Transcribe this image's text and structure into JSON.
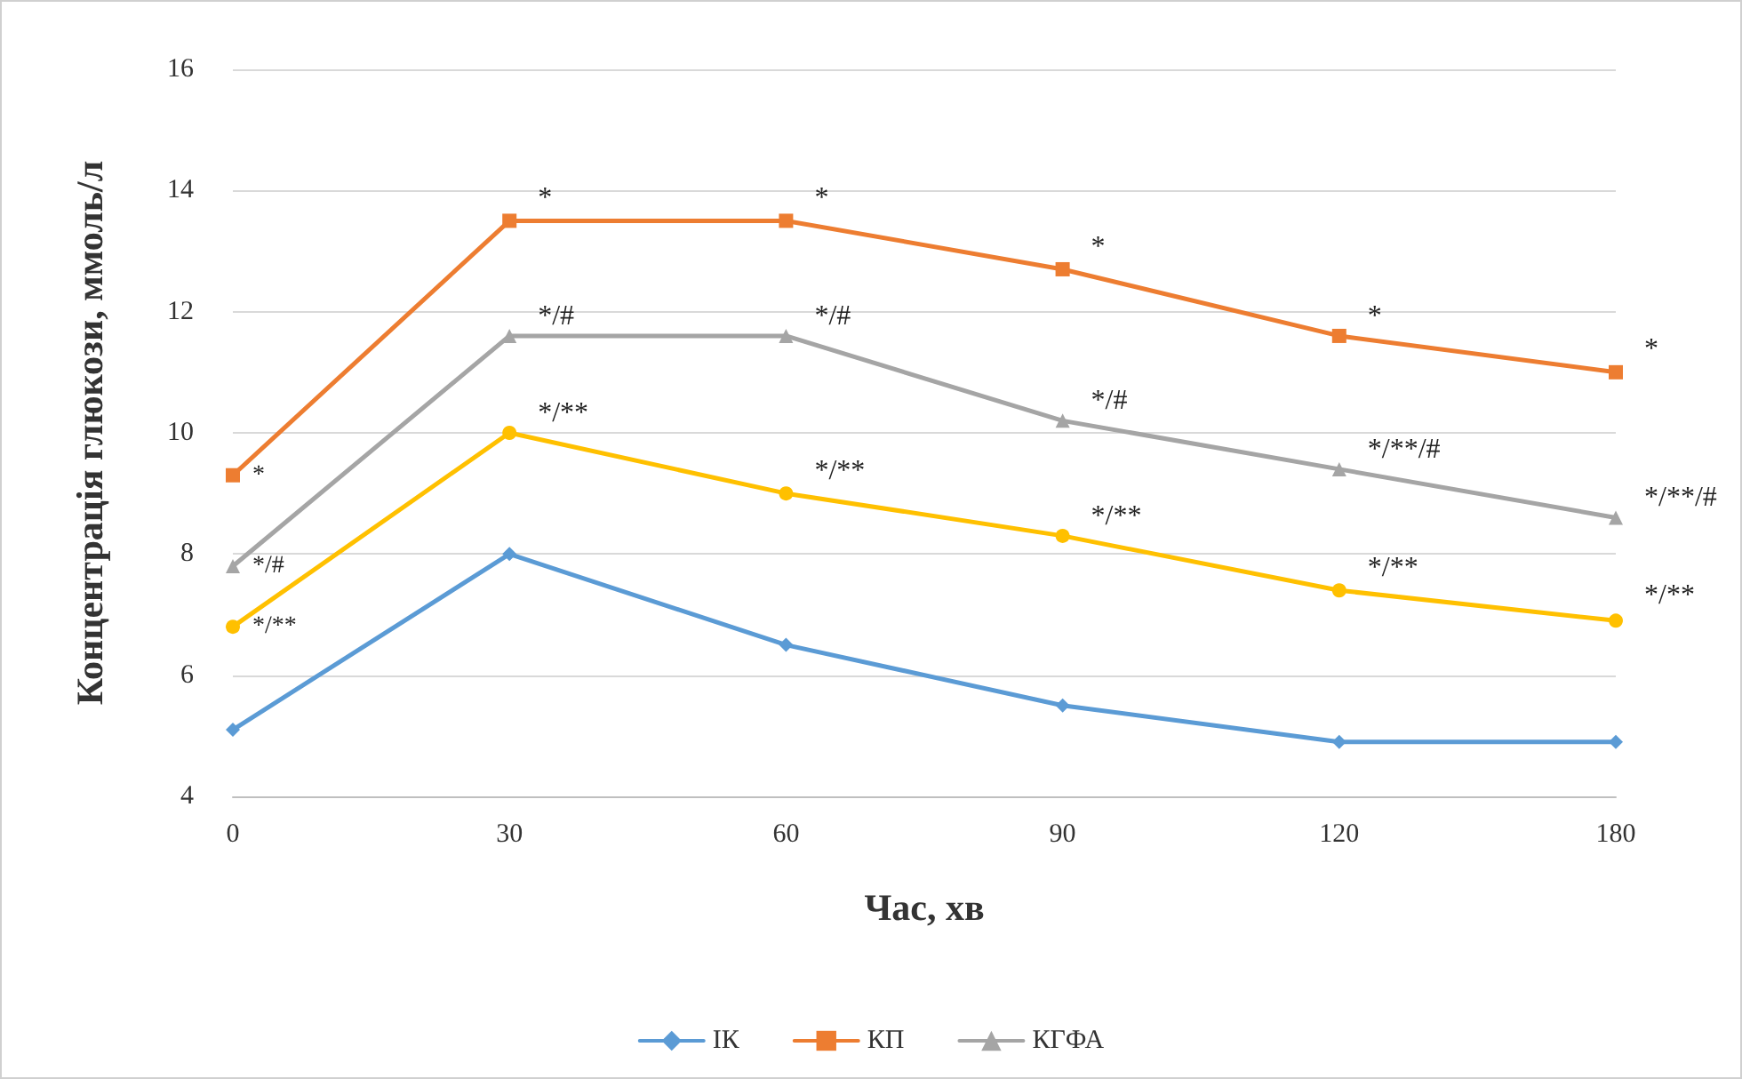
{
  "chart_data": {
    "type": "line",
    "xlabel": "Час, хв",
    "ylabel": "Концентрація глюкози, ммоль/л",
    "categories": [
      "0",
      "30",
      "60",
      "90",
      "120",
      "180"
    ],
    "series": [
      {
        "name": "ІК",
        "color": "#5b9bd5",
        "marker": "diamond",
        "values": [
          5.1,
          8.0,
          6.5,
          5.5,
          4.9,
          4.9
        ]
      },
      {
        "name": "КП",
        "color": "#ed7d31",
        "marker": "square",
        "values": [
          9.3,
          13.5,
          13.5,
          12.7,
          11.6,
          11.0
        ]
      },
      {
        "name": "КГФА",
        "color": "#a5a5a5",
        "marker": "triangle",
        "values": [
          7.8,
          11.6,
          11.6,
          10.2,
          9.4,
          8.6
        ]
      },
      {
        "color": "#ffc000",
        "marker": "circle",
        "values": [
          6.8,
          10.0,
          9.0,
          8.3,
          7.4,
          6.9
        ]
      }
    ],
    "ylim": [
      4,
      16
    ],
    "yticks": [
      4,
      6,
      8,
      10,
      12,
      14,
      16
    ],
    "grid": "y",
    "legend": "bottom",
    "line_style": "solid",
    "annotations": [
      {
        "text": "*",
        "x": "0",
        "y": 9.3
      },
      {
        "text": "*/#",
        "x": "0",
        "y": 7.8
      },
      {
        "text": "*/**",
        "x": "0",
        "y": 6.8
      },
      {
        "text": "*",
        "x": "30",
        "y": 13.55
      },
      {
        "text": "*/#",
        "x": "30",
        "y": 11.6
      },
      {
        "text": "*/**",
        "x": "30",
        "y": 10.0
      },
      {
        "text": "*",
        "x": "60",
        "y": 13.55
      },
      {
        "text": "*/#",
        "x": "60",
        "y": 11.6
      },
      {
        "text": "*/**",
        "x": "60",
        "y": 9.05
      },
      {
        "text": "*",
        "x": "90",
        "y": 12.75
      },
      {
        "text": "*/#",
        "x": "90",
        "y": 10.2
      },
      {
        "text": "*/**",
        "x": "90",
        "y": 8.3
      },
      {
        "text": "*",
        "x": "120",
        "y": 11.6
      },
      {
        "text": "*/**/#",
        "x": "120",
        "y": 9.4
      },
      {
        "text": "*/**",
        "x": "120",
        "y": 7.45
      },
      {
        "text": "*",
        "x": "180",
        "y": 11.05
      },
      {
        "text": "*/**/#",
        "x": "180",
        "y": 8.6
      },
      {
        "text": "*/**",
        "x": "180",
        "y": 7.0
      }
    ]
  }
}
